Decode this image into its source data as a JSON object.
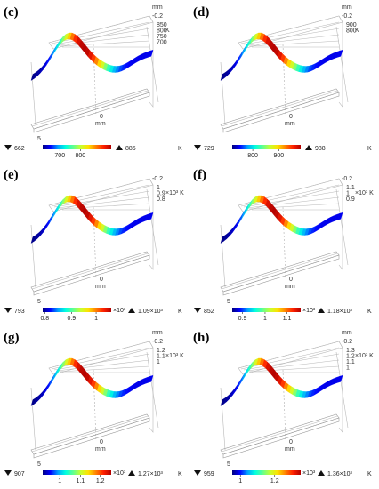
{
  "panels": [
    {
      "id": "c",
      "label": "(c)",
      "axis_unit": "mm",
      "axis_top": "-0.2",
      "z_ticks": [
        "850",
        "800",
        "750",
        "700"
      ],
      "z_unit": "K",
      "depth_tick": "5",
      "x_tick": "0",
      "x_unit": "mm",
      "min": "662",
      "max": "885",
      "unit": "K",
      "cb_ticks": [
        "700",
        "800"
      ],
      "cb_pos": [
        0.25,
        0.55
      ],
      "cb_mult": ""
    },
    {
      "id": "d",
      "label": "(d)",
      "axis_unit": "mm",
      "axis_top": "-0.2",
      "z_ticks": [
        "900",
        "800"
      ],
      "z_unit": "K",
      "depth_tick": "",
      "x_tick": "0",
      "x_unit": "mm",
      "min": "729",
      "max": "988",
      "unit": "K",
      "cb_ticks": [
        "800",
        "900"
      ],
      "cb_pos": [
        0.3,
        0.68
      ],
      "cb_mult": ""
    },
    {
      "id": "e",
      "label": "(e)",
      "axis_unit": "",
      "axis_top": "-0.2",
      "z_ticks": [
        "1",
        "0.9",
        "0.8"
      ],
      "z_unit": "×10³ K",
      "depth_tick": "5",
      "x_tick": "0",
      "x_unit": "mm",
      "min": "793",
      "max": "1.09×10³",
      "unit": "K",
      "cb_ticks": [
        "0.8",
        "0.9",
        "1"
      ],
      "cb_pos": [
        0.03,
        0.42,
        0.78
      ],
      "cb_mult": "×10³"
    },
    {
      "id": "f",
      "label": "(f)",
      "axis_unit": "",
      "axis_top": "-0.2",
      "z_ticks": [
        "1.1",
        "1",
        "0.9"
      ],
      "z_unit": "×10³ K",
      "depth_tick": "5",
      "x_tick": "0",
      "x_unit": "mm",
      "min": "852",
      "max": "1.18×10³",
      "unit": "K",
      "cb_ticks": [
        "0.9",
        "1",
        "1.1"
      ],
      "cb_pos": [
        0.15,
        0.48,
        0.8
      ],
      "cb_mult": "×10³"
    },
    {
      "id": "g",
      "label": "(g)",
      "axis_unit": "mm",
      "axis_top": "-0.2",
      "z_ticks": [
        "1.2",
        "1.1",
        "1"
      ],
      "z_unit": "×10³ K",
      "depth_tick": "5",
      "x_tick": "0",
      "x_unit": "mm",
      "min": "907",
      "max": "1.27×10³",
      "unit": "K",
      "cb_ticks": [
        "1",
        "1.1",
        "1.2"
      ],
      "cb_pos": [
        0.25,
        0.55,
        0.84
      ],
      "cb_mult": "×10³"
    },
    {
      "id": "h",
      "label": "(h)",
      "axis_unit": "mm",
      "axis_top": "-0.2",
      "z_ticks": [
        "1.3",
        "1.2",
        "1.1",
        "1"
      ],
      "z_unit": "×10³ K",
      "depth_tick": "5",
      "x_tick": "0",
      "x_unit": "mm",
      "min": "959",
      "max": "1.36×10³",
      "unit": "K",
      "cb_ticks": [
        "1",
        "1.2"
      ],
      "cb_pos": [
        0.12,
        0.62
      ],
      "cb_mult": "×10³"
    }
  ],
  "colormap": [
    "#00007f",
    "#0000ff",
    "#00a0ff",
    "#00ffe0",
    "#60ff90",
    "#c8ff30",
    "#ffe000",
    "#ff8000",
    "#ff2000",
    "#b00000"
  ]
}
